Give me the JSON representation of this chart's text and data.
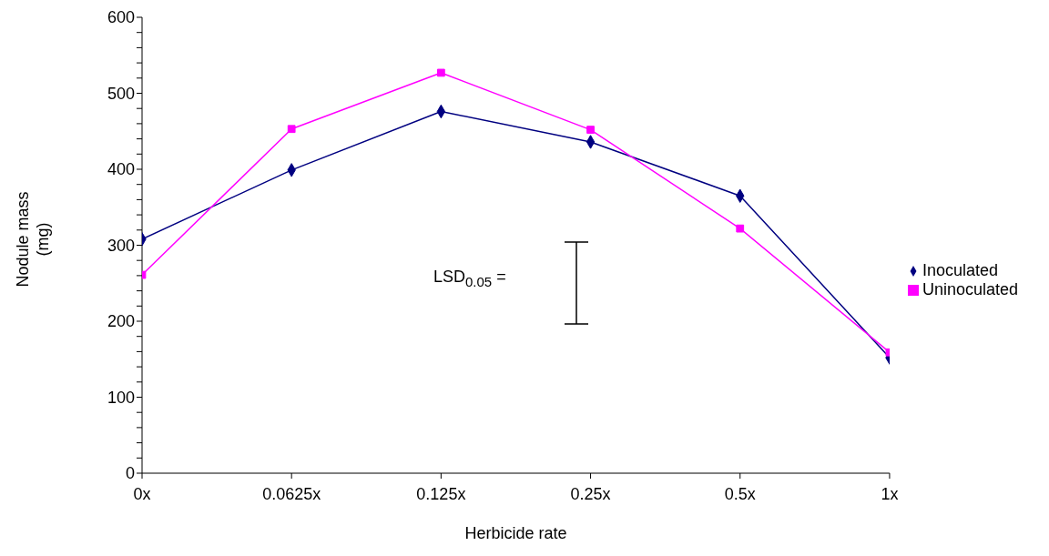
{
  "chart_data": {
    "type": "line",
    "xlabel": "Herbicide rate",
    "ylabel": "Nodule mass (mg)",
    "categories": [
      "0x",
      "0.0625x",
      "0.125x",
      "0.25x",
      "0.5x",
      "1x"
    ],
    "series": [
      {
        "name": "Inoculated",
        "color": "#000080",
        "marker": "diamond",
        "values": [
          308,
          399,
          476,
          436,
          365,
          152
        ]
      },
      {
        "name": "Uninoculated",
        "color": "#ff00ff",
        "marker": "square",
        "values": [
          261,
          453,
          527,
          452,
          322,
          159
        ]
      }
    ],
    "ylim": [
      0,
      600
    ],
    "yticks": [
      0,
      {
        "value": 20,
        "label": null
      },
      {
        "value": 40,
        "label": null
      },
      {
        "value": 60,
        "label": null
      },
      {
        "value": 80,
        "label": null
      },
      100,
      {
        "value": 120,
        "label": null
      },
      {
        "value": 140,
        "label": null
      },
      {
        "value": 160,
        "label": null
      },
      {
        "value": 180,
        "label": null
      },
      200,
      {
        "value": 220,
        "label": null
      },
      {
        "value": 240,
        "label": null
      },
      {
        "value": 260,
        "label": null
      },
      {
        "value": 280,
        "label": null
      },
      300,
      {
        "value": 320,
        "label": null
      },
      {
        "value": 340,
        "label": null
      },
      {
        "value": 360,
        "label": null
      },
      {
        "value": 380,
        "label": null
      },
      400,
      {
        "value": 420,
        "label": null
      },
      {
        "value": 440,
        "label": null
      },
      {
        "value": 460,
        "label": null
      },
      {
        "value": 480,
        "label": null
      },
      500,
      {
        "value": 520,
        "label": null
      },
      {
        "value": 540,
        "label": null
      },
      {
        "value": 560,
        "label": null
      },
      {
        "value": 580,
        "label": null
      },
      600
    ],
    "annotations": [
      "LSD$_{0.05}$ ="
    ],
    "grid": false,
    "legend": "right",
    "line_style": "solid"
  }
}
